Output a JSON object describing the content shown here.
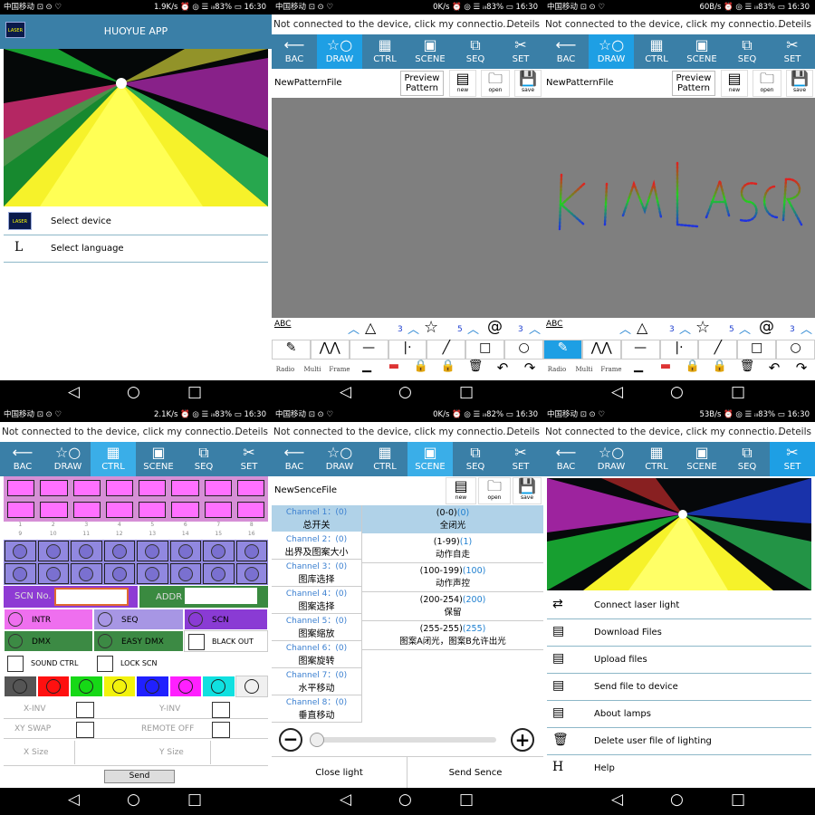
{
  "status": {
    "p1": {
      "carrier": "中国移动 ⊡ ⊙ ♡",
      "right": "1.9K/s ⏰ ◎ ☰ ᵢₗₗ83% ▭ 16:30"
    },
    "p2": {
      "carrier": "中国移动 ⊡ ⊙ ♡",
      "right": "0K/s ⏰ ◎ ☰ ᵢₗₗ83% ▭ 16:30"
    },
    "p3": {
      "carrier": "中国移动 ⊡ ⊙ ♡",
      "right": "60B/s ⏰ ◎ ☰ ᵢₗₗ83% ▭ 16:30"
    },
    "p4": {
      "carrier": "中国移动 ⊡ ⊙ ♡",
      "right": "2.1K/s ⏰ ◎ ☰ ᵢₗₗ83% ▭ 16:30"
    },
    "p5": {
      "carrier": "中国移动 ⊡ ⊙ ♡",
      "right": "0K/s ⏰ ◎ ☰ ᵢₗₗ82% ▭ 16:30"
    },
    "p6": {
      "carrier": "中国移动 ⊡ ⊙ ♡",
      "right": "53B/s ⏰ ◎ ☰ ᵢₗₗ83% ▭ 16:30"
    }
  },
  "nav": {
    "back": "◁",
    "home": "○",
    "recent": "□"
  },
  "app": {
    "title": "HUOYUE APP",
    "logo_text": "LASER",
    "items": [
      {
        "icon": "device-icon",
        "label": "Select device"
      },
      {
        "icon": "L",
        "label": "Select language"
      }
    ]
  },
  "header": {
    "msg": "Not connected to the device, click my connectio...",
    "details": "Deteils"
  },
  "tabs": {
    "bac": "BAC",
    "draw": "DRAW",
    "ctrl": "CTRL",
    "scene": "SCENE",
    "seq": "SEQ",
    "set": "SET"
  },
  "draw": {
    "filename": "NewPatternFile",
    "preview": "Preview Pattern",
    "new": "new",
    "open": "open",
    "save": "save",
    "abc": "ABC",
    "count_triangle": "3",
    "count_star": "5",
    "count_spiral": "3",
    "radio": "Radio",
    "multi": "Multi",
    "frame": "Frame",
    "drawn_text": "KIMLASER"
  },
  "ctrl": {
    "numbers": [
      "1",
      "2",
      "3",
      "4",
      "5",
      "6",
      "7",
      "8",
      "9",
      "10",
      "11",
      "12",
      "13",
      "14",
      "15",
      "16"
    ],
    "scn_no": "SCN No.",
    "addr": "ADDR",
    "intr": "INTR",
    "seq": "SEQ",
    "scn": "SCN",
    "dmx": "DMX",
    "easy_dmx": "EASY DMX",
    "black_out": "BLACK OUT",
    "sound_ctrl": "SOUND CTRL",
    "lock_scn": "LOCK SCN",
    "colors": [
      "#555555",
      "#ff1010",
      "#16d816",
      "#f2f20c",
      "#2020ff",
      "#ff20ff",
      "#10e0e0",
      "#f0f0f0"
    ],
    "x_inv": "X-INV",
    "y_inv": "Y-INV",
    "xy_swap": "XY SWAP",
    "remote_off": "REMOTE OFF",
    "x_size": "X Size",
    "y_size": "Y Size",
    "send": "Send"
  },
  "scene": {
    "filename": "NewSenceFile",
    "channels": [
      {
        "label": "Channel 1：",
        "val": "(0)",
        "name": "总开关"
      },
      {
        "label": "Channel 2：",
        "val": "(0)",
        "name": "出界及图案大小"
      },
      {
        "label": "Channel 3：",
        "val": "(0)",
        "name": "图库选择"
      },
      {
        "label": "Channel 4：",
        "val": "(0)",
        "name": "图案选择"
      },
      {
        "label": "Channel 5：",
        "val": "(0)",
        "name": "图案缩放"
      },
      {
        "label": "Channel 6：",
        "val": "(0)",
        "name": "图案旋转"
      },
      {
        "label": "Channel 7：",
        "val": "(0)",
        "name": "水平移动"
      },
      {
        "label": "Channel 8：",
        "val": "(0)",
        "name": "垂直移动"
      }
    ],
    "values": [
      {
        "range": "(0-0)",
        "v": "(0)",
        "desc": "全闭光"
      },
      {
        "range": "(1-99)",
        "v": "(1)",
        "desc": "动作自走"
      },
      {
        "range": "(100-199)",
        "v": "(100)",
        "desc": "动作声控"
      },
      {
        "range": "(200-254)",
        "v": "(200)",
        "desc": "保留"
      },
      {
        "range": "(255-255)",
        "v": "(255)",
        "desc": "图案A闭光，图案B允许出光"
      }
    ],
    "minus": "−",
    "plus": "+",
    "close_light": "Close light",
    "send_scene": "Send Sence"
  },
  "set": {
    "items": [
      {
        "icon": "⇄",
        "label": "Connect laser light"
      },
      {
        "icon": "▤",
        "label": "Download Files"
      },
      {
        "icon": "▤",
        "label": "Upload files"
      },
      {
        "icon": "▤",
        "label": "Send file to device"
      },
      {
        "icon": "▤",
        "label": "About lamps"
      },
      {
        "icon": "🗑",
        "label": "Delete user file of lighting"
      },
      {
        "icon": "H",
        "label": "Help"
      }
    ]
  }
}
